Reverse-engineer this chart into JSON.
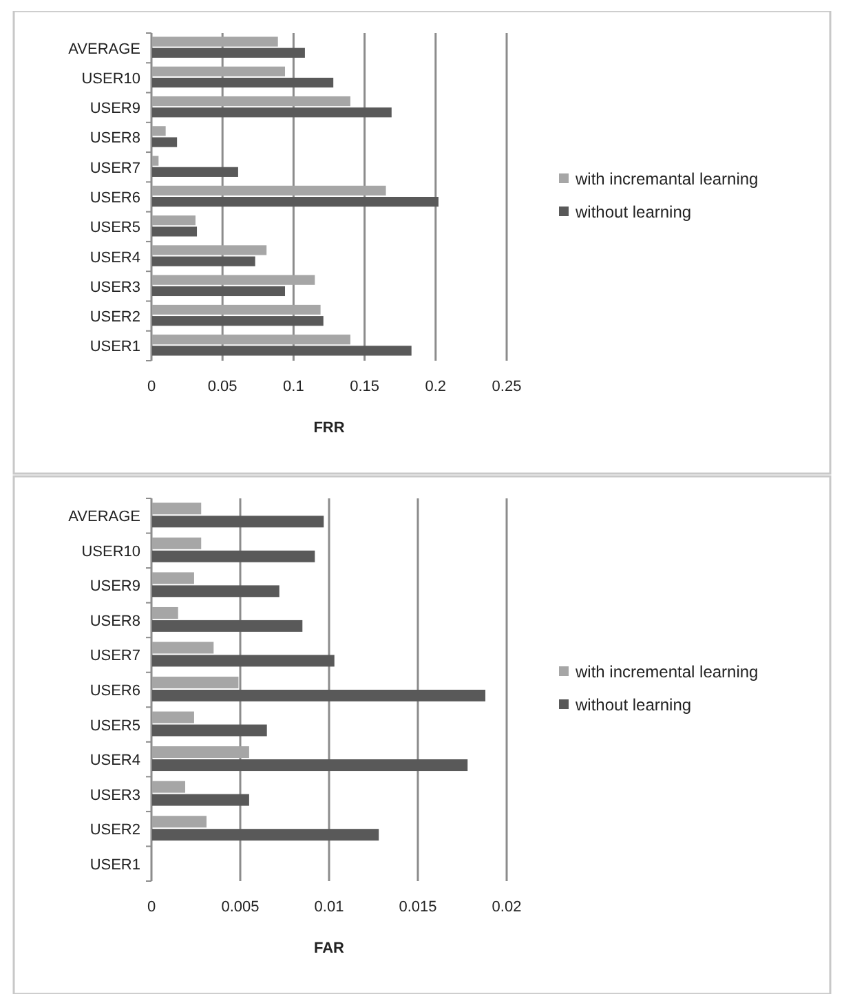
{
  "chart_data": [
    {
      "type": "bar",
      "orientation": "horizontal",
      "xlabel": "FRR",
      "categories": [
        "AVERAGE",
        "USER10",
        "USER9",
        "USER8",
        "USER7",
        "USER6",
        "USER5",
        "USER4",
        "USER3",
        "USER2",
        "USER1"
      ],
      "series": [
        {
          "name": "with incremantal learning",
          "color": "#a6a6a6",
          "values": [
            0.089,
            0.094,
            0.14,
            0.01,
            0.005,
            0.165,
            0.031,
            0.081,
            0.115,
            0.119,
            0.14
          ]
        },
        {
          "name": "without learning",
          "color": "#595959",
          "values": [
            0.108,
            0.128,
            0.169,
            0.018,
            0.061,
            0.202,
            0.032,
            0.073,
            0.094,
            0.121,
            0.183
          ]
        }
      ],
      "xlim": [
        0,
        0.25
      ],
      "xticks": [
        0,
        0.05,
        0.1,
        0.15,
        0.2,
        0.25
      ],
      "grid": "x",
      "legend": "right"
    },
    {
      "type": "bar",
      "orientation": "horizontal",
      "xlabel": "FAR",
      "categories": [
        "AVERAGE",
        "USER10",
        "USER9",
        "USER8",
        "USER7",
        "USER6",
        "USER5",
        "USER4",
        "USER3",
        "USER2",
        "USER1"
      ],
      "series": [
        {
          "name": "with incremental learning",
          "color": "#a6a6a6",
          "values": [
            0.0028,
            0.0028,
            0.0024,
            0.0015,
            0.0035,
            0.0049,
            0.0024,
            0.0055,
            0.0019,
            0.0031,
            0
          ]
        },
        {
          "name": "without learning",
          "color": "#595959",
          "values": [
            0.0097,
            0.0092,
            0.0072,
            0.0085,
            0.0103,
            0.0188,
            0.0065,
            0.0178,
            0.0055,
            0.0128,
            0
          ]
        }
      ],
      "xlim": [
        0,
        0.02
      ],
      "xticks": [
        0,
        0.005,
        0.01,
        0.015,
        0.02
      ],
      "grid": "x",
      "legend": "right"
    }
  ]
}
